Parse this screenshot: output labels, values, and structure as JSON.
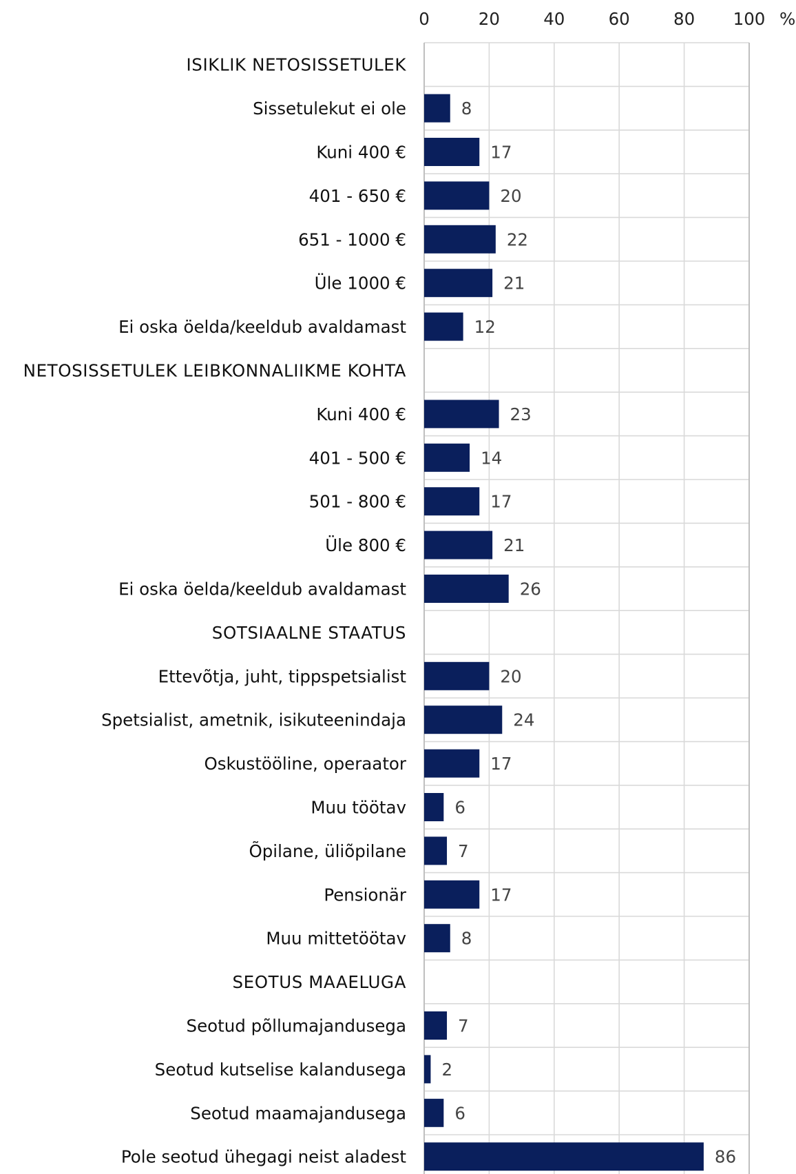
{
  "chart_data": {
    "type": "bar",
    "orientation": "horizontal",
    "unit": "%",
    "xlim": [
      0,
      100
    ],
    "x_ticks": [
      "0",
      "20",
      "40",
      "60",
      "80",
      "100"
    ],
    "grid": true,
    "bar_color": "#0A1F5C",
    "rows": [
      {
        "label": "ISIKLIK NETOSISSETULEK",
        "header": true,
        "value": null
      },
      {
        "label": "Sissetulekut ei ole",
        "header": false,
        "value": 8
      },
      {
        "label": "Kuni 400 €",
        "header": false,
        "value": 17
      },
      {
        "label": "401 - 650 €",
        "header": false,
        "value": 20
      },
      {
        "label": "651 - 1000 €",
        "header": false,
        "value": 22
      },
      {
        "label": "Üle 1000 €",
        "header": false,
        "value": 21
      },
      {
        "label": "Ei oska öelda/keeldub avaldamast",
        "header": false,
        "value": 12
      },
      {
        "label": "NETOSISSETULEK LEIBKONNALIIKME KOHTA",
        "header": true,
        "value": null
      },
      {
        "label": "Kuni 400 €",
        "header": false,
        "value": 23
      },
      {
        "label": "401 - 500 €",
        "header": false,
        "value": 14
      },
      {
        "label": "501 - 800 €",
        "header": false,
        "value": 17
      },
      {
        "label": "Üle 800 €",
        "header": false,
        "value": 21
      },
      {
        "label": "Ei oska öelda/keeldub avaldamast",
        "header": false,
        "value": 26
      },
      {
        "label": "SOTSIAALNE STAATUS",
        "header": true,
        "value": null
      },
      {
        "label": "Ettevõtja, juht, tippspetsialist",
        "header": false,
        "value": 20
      },
      {
        "label": "Spetsialist, ametnik, isikuteenindaja",
        "header": false,
        "value": 24
      },
      {
        "label": "Oskustööline, operaator",
        "header": false,
        "value": 17
      },
      {
        "label": "Muu töötav",
        "header": false,
        "value": 6
      },
      {
        "label": "Õpilane, üliõpilane",
        "header": false,
        "value": 7
      },
      {
        "label": "Pensionär",
        "header": false,
        "value": 17
      },
      {
        "label": "Muu mittetöötav",
        "header": false,
        "value": 8
      },
      {
        "label": "SEOTUS MAAELUGA",
        "header": true,
        "value": null
      },
      {
        "label": "Seotud põllumajandusega",
        "header": false,
        "value": 7
      },
      {
        "label": "Seotud kutselise kalandusega",
        "header": false,
        "value": 2
      },
      {
        "label": "Seotud maamajandusega",
        "header": false,
        "value": 6
      },
      {
        "label": "Pole seotud ühegagi neist aladest",
        "header": false,
        "value": 86
      }
    ]
  }
}
